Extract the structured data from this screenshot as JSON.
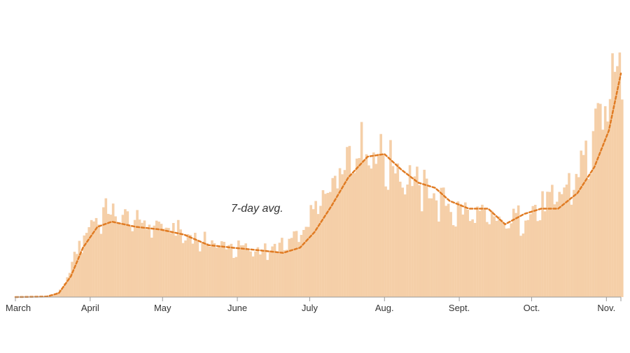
{
  "chart_data": {
    "type": "bar",
    "x_start": "2020-03-01",
    "x_end": "2020-11-07",
    "colors": {
      "bars": "#f5cfa8",
      "average_line": "#e07b23",
      "axis": "#999999"
    },
    "months": [
      "March",
      "April",
      "May",
      "June",
      "July",
      "Aug.",
      "Sept.",
      "Oct.",
      "Nov."
    ],
    "series": [
      {
        "kind": "daily-bars",
        "values_relative": [
          {
            "date": "2020-03-01",
            "y": 0
          },
          {
            "date": "2020-03-15",
            "y": 0.3
          },
          {
            "date": "2020-03-20",
            "y": 3
          },
          {
            "date": "2020-03-25",
            "y": 15
          },
          {
            "date": "2020-03-30",
            "y": 26
          },
          {
            "date": "2020-04-04",
            "y": 31
          },
          {
            "date": "2020-04-08",
            "y": 33
          },
          {
            "date": "2020-04-15",
            "y": 30
          },
          {
            "date": "2020-04-25",
            "y": 28
          },
          {
            "date": "2020-05-05",
            "y": 26
          },
          {
            "date": "2020-05-15",
            "y": 22
          },
          {
            "date": "2020-05-25",
            "y": 20
          },
          {
            "date": "2020-06-05",
            "y": 18
          },
          {
            "date": "2020-06-15",
            "y": 18
          },
          {
            "date": "2020-06-25",
            "y": 22
          },
          {
            "date": "2020-07-01",
            "y": 30
          },
          {
            "date": "2020-07-08",
            "y": 42
          },
          {
            "date": "2020-07-15",
            "y": 54
          },
          {
            "date": "2020-07-20",
            "y": 58
          },
          {
            "date": "2020-07-25",
            "y": 57
          },
          {
            "date": "2020-08-01",
            "y": 53
          },
          {
            "date": "2020-08-10",
            "y": 46
          },
          {
            "date": "2020-08-20",
            "y": 40
          },
          {
            "date": "2020-08-28",
            "y": 34
          },
          {
            "date": "2020-09-05",
            "y": 32
          },
          {
            "date": "2020-09-12",
            "y": 30
          },
          {
            "date": "2020-09-20",
            "y": 28
          },
          {
            "date": "2020-09-28",
            "y": 32
          },
          {
            "date": "2020-10-05",
            "y": 35
          },
          {
            "date": "2020-10-12",
            "y": 38
          },
          {
            "date": "2020-10-20",
            "y": 48
          },
          {
            "date": "2020-10-27",
            "y": 62
          },
          {
            "date": "2020-11-01",
            "y": 75
          },
          {
            "date": "2020-11-04",
            "y": 90
          },
          {
            "date": "2020-11-07",
            "y": 100
          }
        ]
      },
      {
        "kind": "7-day-average",
        "label": "7-day avg.",
        "values_relative": [
          {
            "date": "2020-03-01",
            "y": 0
          },
          {
            "date": "2020-03-14",
            "y": 0.2
          },
          {
            "date": "2020-03-19",
            "y": 1.5
          },
          {
            "date": "2020-03-24",
            "y": 8
          },
          {
            "date": "2020-03-29",
            "y": 19
          },
          {
            "date": "2020-04-04",
            "y": 27
          },
          {
            "date": "2020-04-10",
            "y": 29
          },
          {
            "date": "2020-04-20",
            "y": 27
          },
          {
            "date": "2020-04-30",
            "y": 26
          },
          {
            "date": "2020-05-10",
            "y": 24
          },
          {
            "date": "2020-05-20",
            "y": 20
          },
          {
            "date": "2020-05-30",
            "y": 19
          },
          {
            "date": "2020-06-10",
            "y": 18
          },
          {
            "date": "2020-06-20",
            "y": 17
          },
          {
            "date": "2020-06-27",
            "y": 19
          },
          {
            "date": "2020-07-03",
            "y": 25
          },
          {
            "date": "2020-07-10",
            "y": 35
          },
          {
            "date": "2020-07-17",
            "y": 46
          },
          {
            "date": "2020-07-25",
            "y": 54
          },
          {
            "date": "2020-08-01",
            "y": 55
          },
          {
            "date": "2020-08-08",
            "y": 49
          },
          {
            "date": "2020-08-15",
            "y": 44
          },
          {
            "date": "2020-08-22",
            "y": 42
          },
          {
            "date": "2020-08-28",
            "y": 37
          },
          {
            "date": "2020-09-05",
            "y": 34
          },
          {
            "date": "2020-09-13",
            "y": 34
          },
          {
            "date": "2020-09-20",
            "y": 28
          },
          {
            "date": "2020-09-28",
            "y": 32
          },
          {
            "date": "2020-10-05",
            "y": 34
          },
          {
            "date": "2020-10-12",
            "y": 34
          },
          {
            "date": "2020-10-20",
            "y": 40
          },
          {
            "date": "2020-10-27",
            "y": 50
          },
          {
            "date": "2020-11-02",
            "y": 64
          },
          {
            "date": "2020-11-07",
            "y": 86
          }
        ]
      }
    ]
  }
}
